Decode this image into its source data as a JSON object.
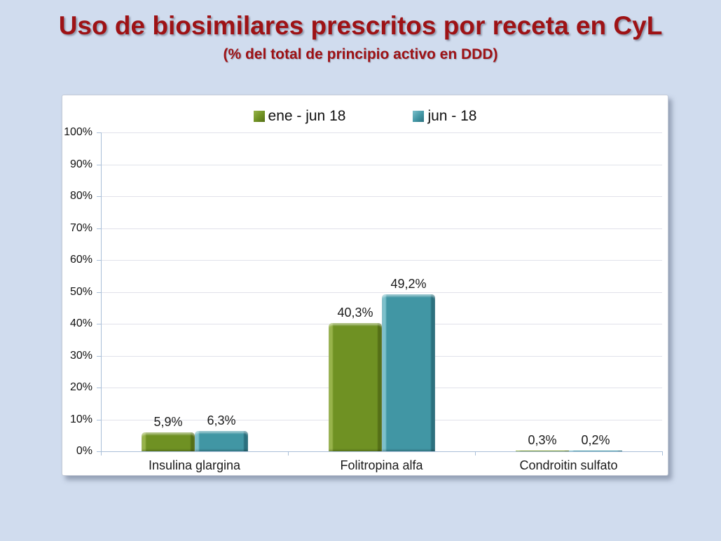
{
  "title": "Uso de biosimilares prescritos por receta en CyL",
  "subtitle": "(% del total de principio activo en DDD)",
  "colors": {
    "background": "#d0dcee",
    "title_red": "#9e1215",
    "panel_bg": "#ffffff",
    "axis": "#a9bfd8",
    "gridline": "#e1e2ea",
    "label_text": "#111111"
  },
  "chart_data": {
    "type": "bar",
    "title": "Uso de biosimilares prescritos por receta en CyL",
    "subtitle": "(% del total de principio activo en DDD)",
    "categories": [
      "Insulina glargina",
      "Folitropina alfa",
      "Condroitin sulfato"
    ],
    "series": [
      {
        "name": "ene - jun 18",
        "values": [
          5.9,
          40.3,
          0.3
        ],
        "display_labels": [
          "5,9%",
          "40,3%",
          "0,3%"
        ],
        "color_main": "#6f9123",
        "color_light": "#97b34a",
        "color_dark": "#546f17"
      },
      {
        "name": "jun - 18",
        "values": [
          6.3,
          49.2,
          0.2
        ],
        "display_labels": [
          "6,3%",
          "49,2%",
          "0,2%"
        ],
        "color_main": "#4196a4",
        "color_light": "#7cc0cb",
        "color_dark": "#2b707e"
      }
    ],
    "xlabel": "",
    "ylabel": "",
    "ylim": [
      0,
      100
    ],
    "ytick_step": 10,
    "yticks": [
      "0%",
      "10%",
      "20%",
      "30%",
      "40%",
      "50%",
      "60%",
      "70%",
      "80%",
      "90%",
      "100%"
    ],
    "grid": true,
    "legend_position": "top"
  }
}
